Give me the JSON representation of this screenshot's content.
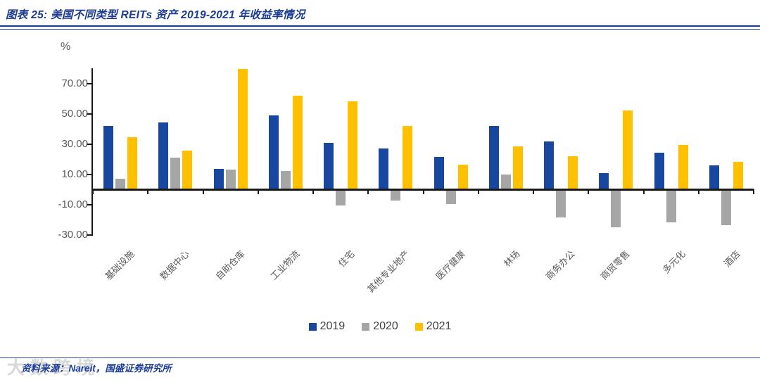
{
  "header": {},
  "chart_data": {
    "type": "bar",
    "title": "图表 25: 美国不同类型 REITs 资产 2019-2021 年收益率情况",
    "unit_label": "%",
    "categories": [
      "基础设施",
      "数据中心",
      "自助仓库",
      "工业物流",
      "住宅",
      "其他专业地产",
      "医疗健康",
      "林场",
      "商务办公",
      "商贸零售",
      "多元化",
      "酒店"
    ],
    "series": [
      {
        "name": "2019",
        "color": "#17479e",
        "values": [
          42.0,
          44.2,
          13.7,
          48.7,
          30.9,
          27.2,
          21.2,
          42.0,
          31.4,
          10.7,
          24.1,
          15.7
        ]
      },
      {
        "name": "2020",
        "color": "#a6a6a6",
        "values": [
          7.0,
          21.0,
          12.9,
          12.2,
          -10.7,
          -7.5,
          -9.9,
          10.0,
          -18.4,
          -25.2,
          -21.8,
          -23.6
        ]
      },
      {
        "name": "2021",
        "color": "#ffc000",
        "values": [
          34.4,
          25.5,
          79.4,
          62.0,
          58.3,
          41.9,
          16.3,
          28.6,
          22.0,
          51.9,
          29.4,
          18.2
        ]
      }
    ],
    "yticks": [
      70,
      50,
      30,
      10,
      -10,
      -30
    ],
    "ytick_labels": [
      "70.00",
      "50.00",
      "30.00",
      "10.00",
      "-10.00",
      "-30.00"
    ],
    "ylim": [
      -30.7,
      80
    ],
    "grid": false,
    "legend_position": "bottom"
  },
  "footer": {
    "source": "资料来源：Nareit，国盛证券研究所",
    "watermark": "大数跨境"
  }
}
